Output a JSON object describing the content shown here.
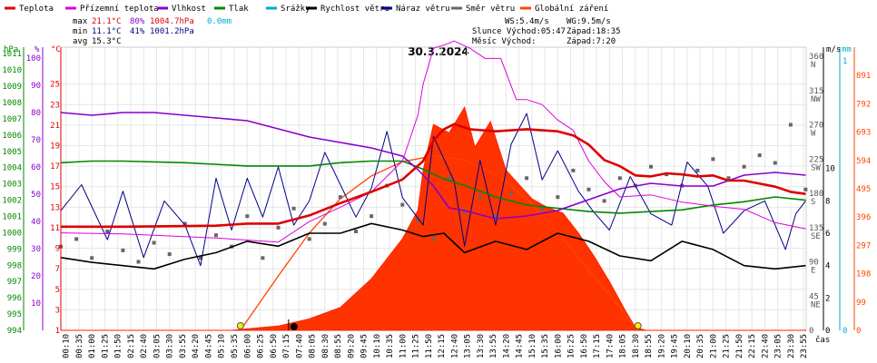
{
  "chart_data": {
    "type": "line",
    "title": "30.3.2024",
    "legend": [
      {
        "name": "Teplota",
        "color": "#dd0000"
      },
      {
        "name": "Přízemní teplota",
        "color": "#dd00dd"
      },
      {
        "name": "Vlhkost",
        "color": "#8800cc"
      },
      {
        "name": "Tlak",
        "color": "#008800"
      },
      {
        "name": "Srážky",
        "color": "#00aacc"
      },
      {
        "name": "Rychlost větru",
        "color": "#000000"
      },
      {
        "name": "Náraz větru",
        "color": "#000088"
      },
      {
        "name": "Směr větru",
        "color": "#666666"
      },
      {
        "name": "Globální záření",
        "color": "#ff4400"
      }
    ],
    "stats": {
      "max": {
        "label": "max",
        "temp": "21.1°C",
        "hum": "80%",
        "press": "1004.7hPa",
        "rain": "0.0mm"
      },
      "min": {
        "label": "min",
        "temp": "11.1°C",
        "hum": "41%",
        "press": "1001.2hPa"
      },
      "avg": {
        "label": "avg",
        "temp": "15.3°C"
      }
    },
    "info": {
      "ws": "WS:5.4m/s",
      "wg": "WG:9.5m/s",
      "sun": "Slunce Východ:05:47",
      "sun_set": "Západ:18:35",
      "moon": "Měsíc  Východ:",
      "moon_set": "Západ:7:20"
    },
    "axes": {
      "hpa": {
        "unit": "hPa",
        "color": "#008800",
        "ticks": [
          "1011",
          "1010",
          "1009",
          "1008",
          "1007",
          "1006",
          "1005",
          "1004",
          "1003",
          "1002",
          "1001",
          "1000",
          "999",
          "998",
          "997",
          "996",
          "995",
          "994"
        ],
        "range": [
          994,
          1011.4
        ]
      },
      "pct": {
        "unit": "%",
        "color": "#8800cc",
        "ticks": [
          "100",
          "90",
          "80",
          "70",
          "60",
          "50",
          "40",
          "30",
          "20",
          "10"
        ],
        "range": [
          0,
          104
        ]
      },
      "temp": {
        "unit": "°C",
        "color": "#dd0000",
        "ticks": [
          "25",
          "23",
          "21",
          "19",
          "17",
          "15",
          "13",
          "11",
          "9",
          "7",
          "5",
          "3",
          "1"
        ],
        "range": [
          1,
          28.6
        ]
      },
      "ms": {
        "unit": "m/s",
        "color": "#000000",
        "ticks": [
          "10",
          "8",
          "6",
          "4",
          "2",
          "0"
        ],
        "range": [
          0,
          17.5
        ]
      },
      "mm": {
        "unit": "mm",
        "color": "#00aacc",
        "ticks": [
          "1",
          "0"
        ],
        "range": [
          0,
          1.05
        ]
      },
      "dir": {
        "color": "#555555",
        "ticks": [
          {
            "v": "360",
            "c": "N"
          },
          {
            "v": "315",
            "c": "NW"
          },
          {
            "v": "270",
            "c": "W"
          },
          {
            "v": "225",
            "c": "SW"
          },
          {
            "v": "180",
            "c": "S"
          },
          {
            "v": "135",
            "c": "SE"
          },
          {
            "v": "90",
            "c": "E"
          },
          {
            "v": "45",
            "c": "NE"
          },
          {
            "v": "0",
            "c": ""
          }
        ],
        "range": [
          0,
          372
        ]
      },
      "rad": {
        "color": "#ff4400",
        "ticks": [
          "891",
          "792",
          "693",
          "594",
          "495",
          "396",
          "297",
          "198",
          "99",
          "0"
        ],
        "range": [
          0,
          990
        ]
      },
      "x_label": "čas",
      "x_ticks": [
        "00:10",
        "00:35",
        "01:00",
        "01:25",
        "01:50",
        "02:15",
        "02:40",
        "03:05",
        "03:30",
        "03:55",
        "04:20",
        "04:45",
        "05:10",
        "05:35",
        "06:00",
        "06:25",
        "06:50",
        "07:15",
        "07:40",
        "08:05",
        "08:30",
        "08:55",
        "09:20",
        "09:45",
        "10:10",
        "10:35",
        "11:00",
        "11:25",
        "11:50",
        "12:15",
        "12:40",
        "13:05",
        "13:30",
        "13:55",
        "14:20",
        "14:45",
        "15:10",
        "15:35",
        "16:00",
        "16:25",
        "16:50",
        "17:15",
        "17:40",
        "18:05",
        "18:30",
        "18:55",
        "19:20",
        "19:45",
        "20:10",
        "20:35",
        "21:00",
        "21:25",
        "21:50",
        "22:15",
        "22:40",
        "23:05",
        "23:30",
        "23:55"
      ]
    },
    "series": {
      "temperature": [
        [
          0,
          11.1
        ],
        [
          120,
          11.1
        ],
        [
          300,
          11.2
        ],
        [
          360,
          11.4
        ],
        [
          420,
          11.4
        ],
        [
          480,
          12.2
        ],
        [
          540,
          13.4
        ],
        [
          600,
          14.5
        ],
        [
          660,
          15.7
        ],
        [
          700,
          17.5
        ],
        [
          720,
          19.5
        ],
        [
          740,
          20.6
        ],
        [
          760,
          21.1
        ],
        [
          790,
          20.6
        ],
        [
          840,
          20.4
        ],
        [
          900,
          20.6
        ],
        [
          960,
          20.4
        ],
        [
          990,
          20.0
        ],
        [
          1020,
          19.1
        ],
        [
          1050,
          17.6
        ],
        [
          1080,
          17.0
        ],
        [
          1110,
          16.1
        ],
        [
          1140,
          16.0
        ],
        [
          1170,
          16.3
        ],
        [
          1200,
          16.2
        ],
        [
          1230,
          16.0
        ],
        [
          1260,
          16.1
        ],
        [
          1290,
          15.6
        ],
        [
          1320,
          15.6
        ],
        [
          1380,
          15.0
        ],
        [
          1410,
          14.5
        ],
        [
          1439,
          14.3
        ]
      ],
      "ground_temperature": [
        [
          0,
          10.5
        ],
        [
          120,
          10.4
        ],
        [
          300,
          10.0
        ],
        [
          420,
          9.6
        ],
        [
          480,
          11.6
        ],
        [
          540,
          13.0
        ],
        [
          600,
          14.5
        ],
        [
          660,
          17.5
        ],
        [
          690,
          22.0
        ],
        [
          700,
          25.0
        ],
        [
          720,
          28.5
        ],
        [
          740,
          28.8
        ],
        [
          760,
          29.2
        ],
        [
          790,
          28.5
        ],
        [
          820,
          27.5
        ],
        [
          850,
          27.5
        ],
        [
          880,
          23.5
        ],
        [
          900,
          23.5
        ],
        [
          930,
          23.0
        ],
        [
          960,
          21.5
        ],
        [
          990,
          20.5
        ],
        [
          1020,
          17.5
        ],
        [
          1050,
          15.5
        ],
        [
          1080,
          14.0
        ],
        [
          1140,
          14.2
        ],
        [
          1200,
          13.5
        ],
        [
          1260,
          13.1
        ],
        [
          1320,
          12.8
        ],
        [
          1380,
          11.5
        ],
        [
          1410,
          11.2
        ],
        [
          1439,
          10.9
        ]
      ],
      "humidity": [
        [
          0,
          80
        ],
        [
          60,
          79
        ],
        [
          120,
          80
        ],
        [
          180,
          80
        ],
        [
          240,
          79
        ],
        [
          300,
          78
        ],
        [
          360,
          77
        ],
        [
          420,
          74
        ],
        [
          480,
          71
        ],
        [
          540,
          69
        ],
        [
          600,
          67
        ],
        [
          660,
          64
        ],
        [
          690,
          59
        ],
        [
          720,
          53
        ],
        [
          750,
          45
        ],
        [
          780,
          44
        ],
        [
          840,
          41
        ],
        [
          900,
          42
        ],
        [
          960,
          44
        ],
        [
          1020,
          48
        ],
        [
          1080,
          52
        ],
        [
          1140,
          54
        ],
        [
          1200,
          53
        ],
        [
          1260,
          53
        ],
        [
          1320,
          57
        ],
        [
          1380,
          58
        ],
        [
          1439,
          57
        ]
      ],
      "pressure": [
        [
          0,
          1004.3
        ],
        [
          60,
          1004.4
        ],
        [
          120,
          1004.4
        ],
        [
          240,
          1004.3
        ],
        [
          360,
          1004.1
        ],
        [
          480,
          1004.1
        ],
        [
          540,
          1004.3
        ],
        [
          600,
          1004.4
        ],
        [
          660,
          1004.4
        ],
        [
          700,
          1003.9
        ],
        [
          740,
          1003.3
        ],
        [
          780,
          1002.9
        ],
        [
          840,
          1002.2
        ],
        [
          900,
          1001.7
        ],
        [
          960,
          1001.5
        ],
        [
          1020,
          1001.3
        ],
        [
          1080,
          1001.2
        ],
        [
          1140,
          1001.3
        ],
        [
          1200,
          1001.4
        ],
        [
          1260,
          1001.7
        ],
        [
          1320,
          1001.9
        ],
        [
          1380,
          1002.2
        ],
        [
          1439,
          1002.0
        ]
      ],
      "wind_speed": [
        [
          0,
          4.5
        ],
        [
          60,
          4.2
        ],
        [
          120,
          4.0
        ],
        [
          180,
          3.8
        ],
        [
          240,
          4.4
        ],
        [
          300,
          4.8
        ],
        [
          360,
          5.5
        ],
        [
          420,
          5.2
        ],
        [
          480,
          6.0
        ],
        [
          540,
          6.0
        ],
        [
          600,
          6.6
        ],
        [
          660,
          6.2
        ],
        [
          700,
          5.8
        ],
        [
          740,
          6.0
        ],
        [
          780,
          4.8
        ],
        [
          840,
          5.5
        ],
        [
          900,
          5.0
        ],
        [
          960,
          6.0
        ],
        [
          1020,
          5.5
        ],
        [
          1080,
          4.6
        ],
        [
          1140,
          4.3
        ],
        [
          1200,
          5.5
        ],
        [
          1260,
          5.0
        ],
        [
          1320,
          4.0
        ],
        [
          1380,
          3.8
        ],
        [
          1439,
          4.0
        ]
      ],
      "wind_gust": [
        [
          0,
          7.4
        ],
        [
          40,
          9.0
        ],
        [
          90,
          5.6
        ],
        [
          120,
          8.6
        ],
        [
          160,
          4.5
        ],
        [
          200,
          8.0
        ],
        [
          240,
          6.5
        ],
        [
          270,
          4.0
        ],
        [
          300,
          9.4
        ],
        [
          330,
          6.2
        ],
        [
          360,
          9.4
        ],
        [
          390,
          7.0
        ],
        [
          420,
          10.1
        ],
        [
          450,
          6.5
        ],
        [
          480,
          8.0
        ],
        [
          510,
          11.0
        ],
        [
          540,
          9.0
        ],
        [
          570,
          7.0
        ],
        [
          600,
          8.8
        ],
        [
          630,
          12.3
        ],
        [
          660,
          8.2
        ],
        [
          700,
          6.5
        ],
        [
          720,
          12.0
        ],
        [
          760,
          9.2
        ],
        [
          780,
          5.2
        ],
        [
          810,
          10.5
        ],
        [
          840,
          6.5
        ],
        [
          870,
          11.5
        ],
        [
          900,
          13.4
        ],
        [
          930,
          9.3
        ],
        [
          960,
          11.1
        ],
        [
          1000,
          8.6
        ],
        [
          1030,
          7.3
        ],
        [
          1060,
          6.2
        ],
        [
          1100,
          9.5
        ],
        [
          1140,
          7.2
        ],
        [
          1180,
          6.5
        ],
        [
          1210,
          10.4
        ],
        [
          1250,
          8.9
        ],
        [
          1280,
          6.0
        ],
        [
          1320,
          7.4
        ],
        [
          1360,
          8.0
        ],
        [
          1400,
          5.0
        ],
        [
          1420,
          7.2
        ],
        [
          1439,
          8.0
        ]
      ],
      "wind_dir": [
        [
          0,
          110
        ],
        [
          30,
          120
        ],
        [
          60,
          95
        ],
        [
          90,
          130
        ],
        [
          120,
          105
        ],
        [
          150,
          90
        ],
        [
          180,
          115
        ],
        [
          210,
          100
        ],
        [
          240,
          140
        ],
        [
          270,
          95
        ],
        [
          300,
          125
        ],
        [
          330,
          110
        ],
        [
          360,
          150
        ],
        [
          390,
          95
        ],
        [
          420,
          135
        ],
        [
          450,
          160
        ],
        [
          480,
          120
        ],
        [
          510,
          140
        ],
        [
          540,
          175
        ],
        [
          570,
          130
        ],
        [
          600,
          150
        ],
        [
          630,
          190
        ],
        [
          660,
          165
        ],
        [
          690,
          145
        ],
        [
          720,
          120
        ],
        [
          750,
          200
        ],
        [
          780,
          155
        ],
        [
          810,
          175
        ],
        [
          840,
          150
        ],
        [
          870,
          180
        ],
        [
          900,
          200
        ],
        [
          930,
          160
        ],
        [
          960,
          175
        ],
        [
          990,
          210
        ],
        [
          1020,
          185
        ],
        [
          1050,
          170
        ],
        [
          1080,
          200
        ],
        [
          1110,
          190
        ],
        [
          1140,
          215
        ],
        [
          1170,
          205
        ],
        [
          1200,
          190
        ],
        [
          1230,
          210
        ],
        [
          1260,
          225
        ],
        [
          1290,
          200
        ],
        [
          1320,
          215
        ],
        [
          1350,
          230
        ],
        [
          1380,
          220
        ],
        [
          1410,
          270
        ],
        [
          1439,
          185
        ]
      ],
      "radiation": [
        [
          0,
          0
        ],
        [
          330,
          0
        ],
        [
          360,
          5
        ],
        [
          420,
          15
        ],
        [
          480,
          40
        ],
        [
          540,
          80
        ],
        [
          600,
          180
        ],
        [
          630,
          250
        ],
        [
          660,
          320
        ],
        [
          690,
          420
        ],
        [
          700,
          560
        ],
        [
          720,
          720
        ],
        [
          750,
          690
        ],
        [
          780,
          780
        ],
        [
          800,
          640
        ],
        [
          830,
          730
        ],
        [
          860,
          560
        ],
        [
          880,
          520
        ],
        [
          910,
          460
        ],
        [
          940,
          430
        ],
        [
          970,
          410
        ],
        [
          1000,
          340
        ],
        [
          1030,
          260
        ],
        [
          1060,
          170
        ],
        [
          1090,
          70
        ],
        [
          1110,
          10
        ],
        [
          1130,
          0
        ],
        [
          1439,
          0
        ]
      ],
      "theoretical_radiation": [
        [
          347,
          0
        ],
        [
          420,
          190
        ],
        [
          480,
          340
        ],
        [
          540,
          460
        ],
        [
          600,
          540
        ],
        [
          660,
          590
        ],
        [
          720,
          610
        ],
        [
          780,
          595
        ],
        [
          840,
          545
        ],
        [
          900,
          460
        ],
        [
          960,
          345
        ],
        [
          1020,
          210
        ],
        [
          1080,
          80
        ],
        [
          1115,
          0
        ]
      ]
    },
    "markers": {
      "sunrise_min": 347,
      "sunset_min": 1115,
      "moonset_min": 440
    }
  }
}
